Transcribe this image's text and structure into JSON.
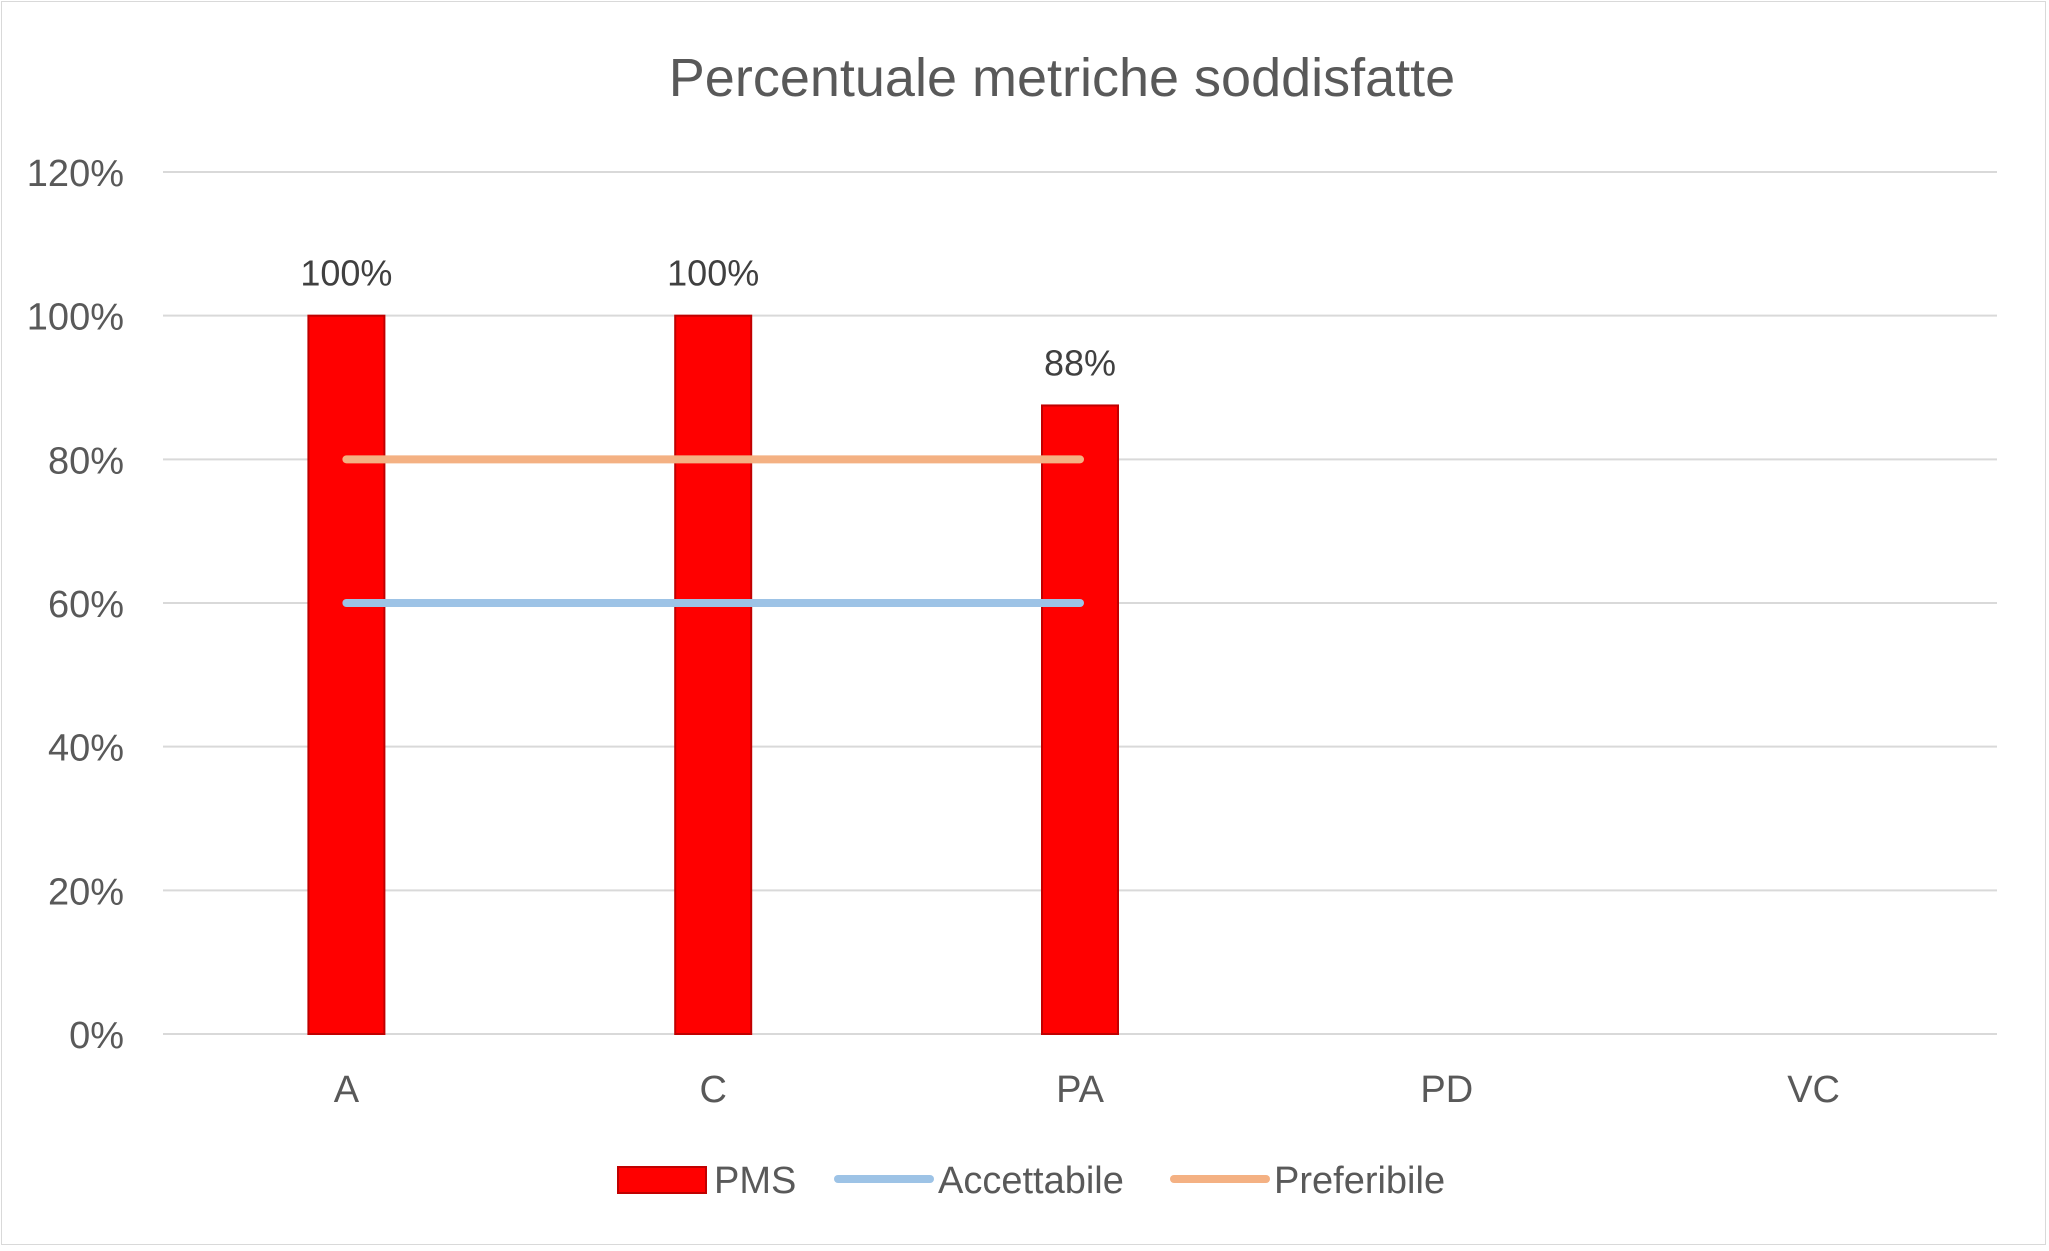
{
  "chart_data": {
    "type": "bar",
    "title": "Percentuale metriche soddisfatte",
    "categories": [
      "A",
      "C",
      "PA",
      "PD",
      "VC"
    ],
    "ylim": [
      0,
      1.2
    ],
    "yticks": [
      0,
      0.2,
      0.4,
      0.6,
      0.8,
      1.0,
      1.2
    ],
    "ytick_labels": [
      "0%",
      "20%",
      "40%",
      "60%",
      "80%",
      "100%",
      "120%"
    ],
    "grid": true,
    "legend_position": "bottom",
    "series": [
      {
        "name": "PMS",
        "type": "bar",
        "values": [
          1.0,
          1.0,
          0.875,
          null,
          null
        ],
        "labels": [
          "100%",
          "100%",
          "88%",
          "",
          ""
        ],
        "color": "#ff0000"
      },
      {
        "name": "Accettabile",
        "type": "line",
        "values": [
          0.6,
          0.6,
          0.6,
          null,
          null
        ],
        "color": "#9dc3e6"
      },
      {
        "name": "Preferibile",
        "type": "line",
        "values": [
          0.8,
          0.8,
          0.8,
          null,
          null
        ],
        "color": "#f4b183"
      }
    ]
  }
}
